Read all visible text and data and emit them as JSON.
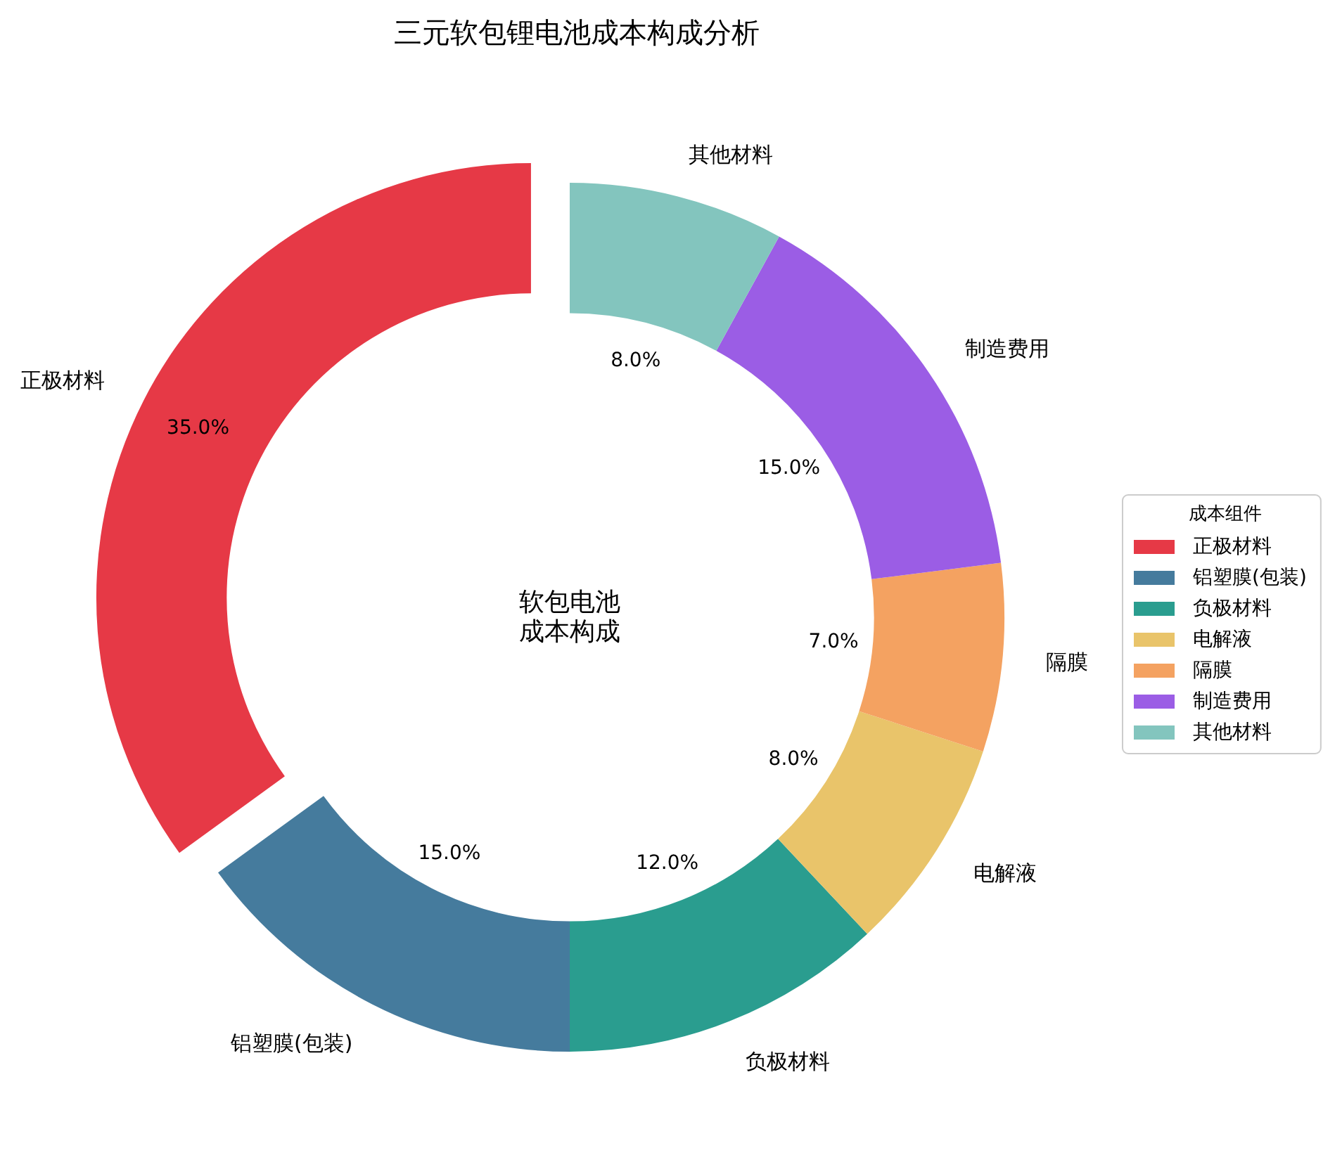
{
  "chart_data": {
    "type": "donut",
    "title": "三元软包锂电池成本构成分析",
    "categories": [
      "正极材料",
      "铝塑膜(包装)",
      "负极材料",
      "电解液",
      "隔膜",
      "制造费用",
      "其他材料"
    ],
    "values": [
      35,
      15,
      12,
      8,
      7,
      15,
      8
    ],
    "colors": [
      "#e63946",
      "#457b9d",
      "#2a9d8f",
      "#e9c46a",
      "#f4a261",
      "#9b5de5",
      "#83c5be"
    ],
    "value_labels": [
      "35.0%",
      "15.0%",
      "12.0%",
      "8.0%",
      "7.0%",
      "15.0%",
      "8.0%"
    ],
    "legend": "right",
    "legend_title": "成本组件",
    "annotations": [
      "软包电池",
      "成本构成"
    ]
  }
}
